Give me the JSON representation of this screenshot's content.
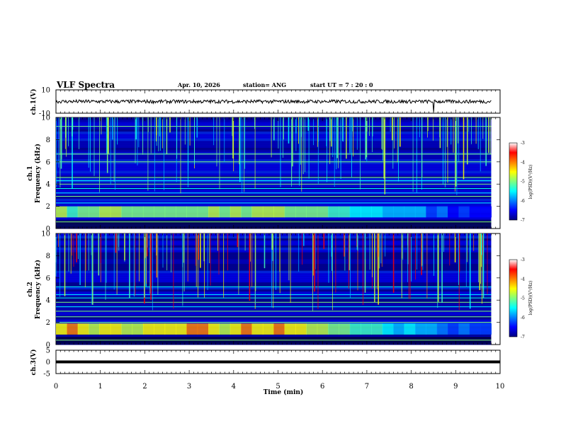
{
  "header": {
    "title": "VLF Spectra",
    "date": "Apr. 10, 2026",
    "station": "station= ANG",
    "start_ut": "start  UT  =   7 : 20 : 0"
  },
  "chart_data": {
    "type": "heatmap",
    "xlabel": "Time  (min)",
    "xlim": [
      0,
      10
    ],
    "x_ticks": [
      "0",
      "1",
      "2",
      "3",
      "4",
      "5",
      "6",
      "7",
      "8",
      "9",
      "10"
    ],
    "data_end_min": 9.8,
    "panels": [
      {
        "id": "ch1-waveform",
        "type": "line",
        "ylabel": "ch.1(V)",
        "ylim": [
          -10,
          10
        ],
        "y_ticks": [
          "10",
          "-10"
        ],
        "baseline_v": 0,
        "noise_amplitude_v": 1.5,
        "spike": {
          "t_min": 8.5,
          "v": -9
        }
      },
      {
        "id": "ch1-spectrogram",
        "type": "heatmap",
        "ylabel_top": "ch.1",
        "ylabel": "Frequency  (kHz)",
        "ylim": [
          0,
          10
        ],
        "y_ticks": [
          "0",
          "2",
          "4",
          "6",
          "8",
          "10"
        ],
        "bright_band_khz": [
          1.0,
          2.0
        ],
        "noise_lines_khz": [
          0.6,
          2.3,
          2.9,
          3.2,
          3.6,
          4.0,
          4.3,
          4.6,
          6.0,
          6.7,
          9.2
        ]
      },
      {
        "id": "ch2-spectrogram",
        "type": "heatmap",
        "ylabel_top": "ch.2",
        "ylabel": "Frequency  (kHz)",
        "ylim": [
          0,
          10
        ],
        "y_ticks": [
          "0",
          "2",
          "4",
          "6",
          "8",
          "10"
        ],
        "bright_band_khz": [
          0.9,
          1.9
        ],
        "noise_lines_khz": [
          0.4,
          2.0,
          2.5,
          3.0,
          3.4,
          3.8,
          4.2,
          4.5,
          5.2
        ]
      },
      {
        "id": "ch3-waveform",
        "type": "line",
        "ylabel": "ch.3(V)",
        "ylim": [
          -5,
          5
        ],
        "y_ticks": [
          "5",
          "0",
          "-5"
        ],
        "baseline_v": 0
      }
    ],
    "colorbar": {
      "label": "log(PSD)(V²/Hz)",
      "range": [
        -7,
        -3
      ],
      "ticks": [
        "-3",
        "-4",
        "-5",
        "-6",
        "-7"
      ],
      "colormap": [
        "#00007f",
        "#0000ff",
        "#007fff",
        "#00ffff",
        "#7fff7f",
        "#ffff00",
        "#ff7f00",
        "#ff0000",
        "#ffffff"
      ]
    }
  }
}
